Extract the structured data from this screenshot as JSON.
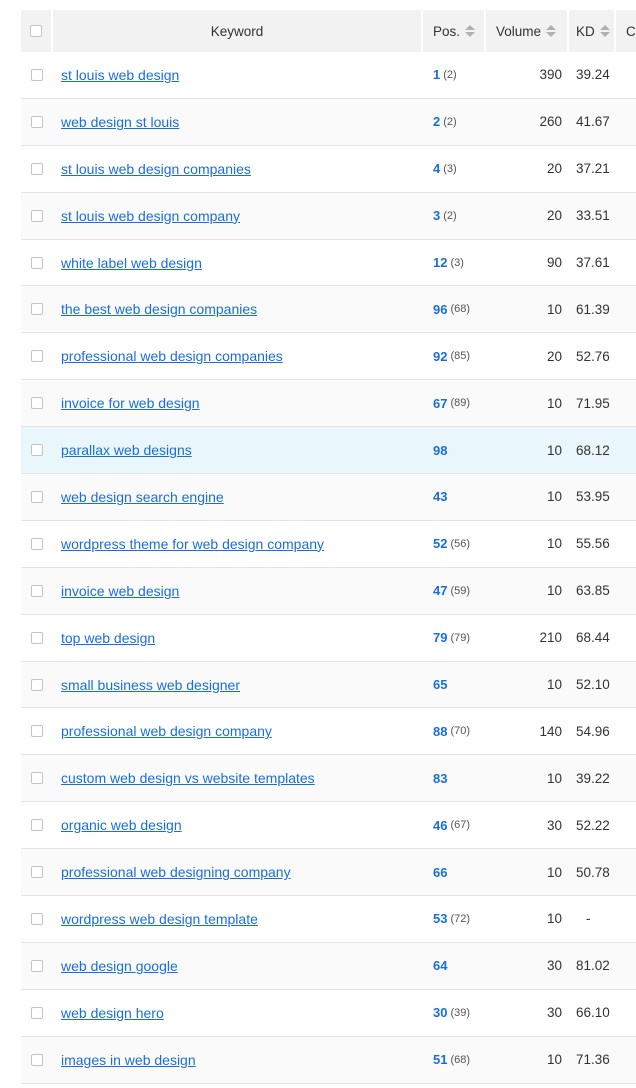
{
  "header": {
    "keyword": "Keyword",
    "pos": "Pos.",
    "volume": "Volume",
    "kd": "KD",
    "cpc": "CPC"
  },
  "rows": [
    {
      "keyword": "st louis web design",
      "pos": "1",
      "prev": "(2)",
      "volume": "390",
      "kd": "39.24"
    },
    {
      "keyword": "web design st louis",
      "pos": "2",
      "prev": "(2)",
      "volume": "260",
      "kd": "41.67"
    },
    {
      "keyword": "st louis web design companies",
      "pos": "4",
      "prev": "(3)",
      "volume": "20",
      "kd": "37.21"
    },
    {
      "keyword": "st louis web design company",
      "pos": "3",
      "prev": "(2)",
      "volume": "20",
      "kd": "33.51"
    },
    {
      "keyword": "white label web design",
      "pos": "12",
      "prev": "(3)",
      "volume": "90",
      "kd": "37.61"
    },
    {
      "keyword": "the best web design companies",
      "pos": "96",
      "prev": "(68)",
      "volume": "10",
      "kd": "61.39"
    },
    {
      "keyword": "professional web design companies",
      "pos": "92",
      "prev": "(85)",
      "volume": "20",
      "kd": "52.76"
    },
    {
      "keyword": "invoice for web design",
      "pos": "67",
      "prev": "(89)",
      "volume": "10",
      "kd": "71.95"
    },
    {
      "keyword": "parallax web designs",
      "pos": "98",
      "prev": "",
      "volume": "10",
      "kd": "68.12",
      "highlight": true
    },
    {
      "keyword": "web design search engine",
      "pos": "43",
      "prev": "",
      "volume": "10",
      "kd": "53.95"
    },
    {
      "keyword": "wordpress theme for web design company",
      "pos": "52",
      "prev": "(56)",
      "volume": "10",
      "kd": "55.56"
    },
    {
      "keyword": "invoice web design",
      "pos": "47",
      "prev": "(59)",
      "volume": "10",
      "kd": "63.85"
    },
    {
      "keyword": "top web design",
      "pos": "79",
      "prev": "(79)",
      "volume": "210",
      "kd": "68.44"
    },
    {
      "keyword": "small business web designer",
      "pos": "65",
      "prev": "",
      "volume": "10",
      "kd": "52.10"
    },
    {
      "keyword": "professional web design company",
      "pos": "88",
      "prev": "(70)",
      "volume": "140",
      "kd": "54.96"
    },
    {
      "keyword": "custom web design vs website templates",
      "pos": "83",
      "prev": "",
      "volume": "10",
      "kd": "39.22"
    },
    {
      "keyword": "organic web design",
      "pos": "46",
      "prev": "(67)",
      "volume": "30",
      "kd": "52.22"
    },
    {
      "keyword": "professional web designing company",
      "pos": "66",
      "prev": "",
      "volume": "10",
      "kd": "50.78"
    },
    {
      "keyword": "wordpress web design template",
      "pos": "53",
      "prev": "(72)",
      "volume": "10",
      "kd": "-"
    },
    {
      "keyword": "web design google",
      "pos": "64",
      "prev": "",
      "volume": "30",
      "kd": "81.02"
    },
    {
      "keyword": "web design hero",
      "pos": "30",
      "prev": "(39)",
      "volume": "30",
      "kd": "66.10"
    },
    {
      "keyword": "images in web design",
      "pos": "51",
      "prev": "(68)",
      "volume": "10",
      "kd": "71.36"
    }
  ]
}
